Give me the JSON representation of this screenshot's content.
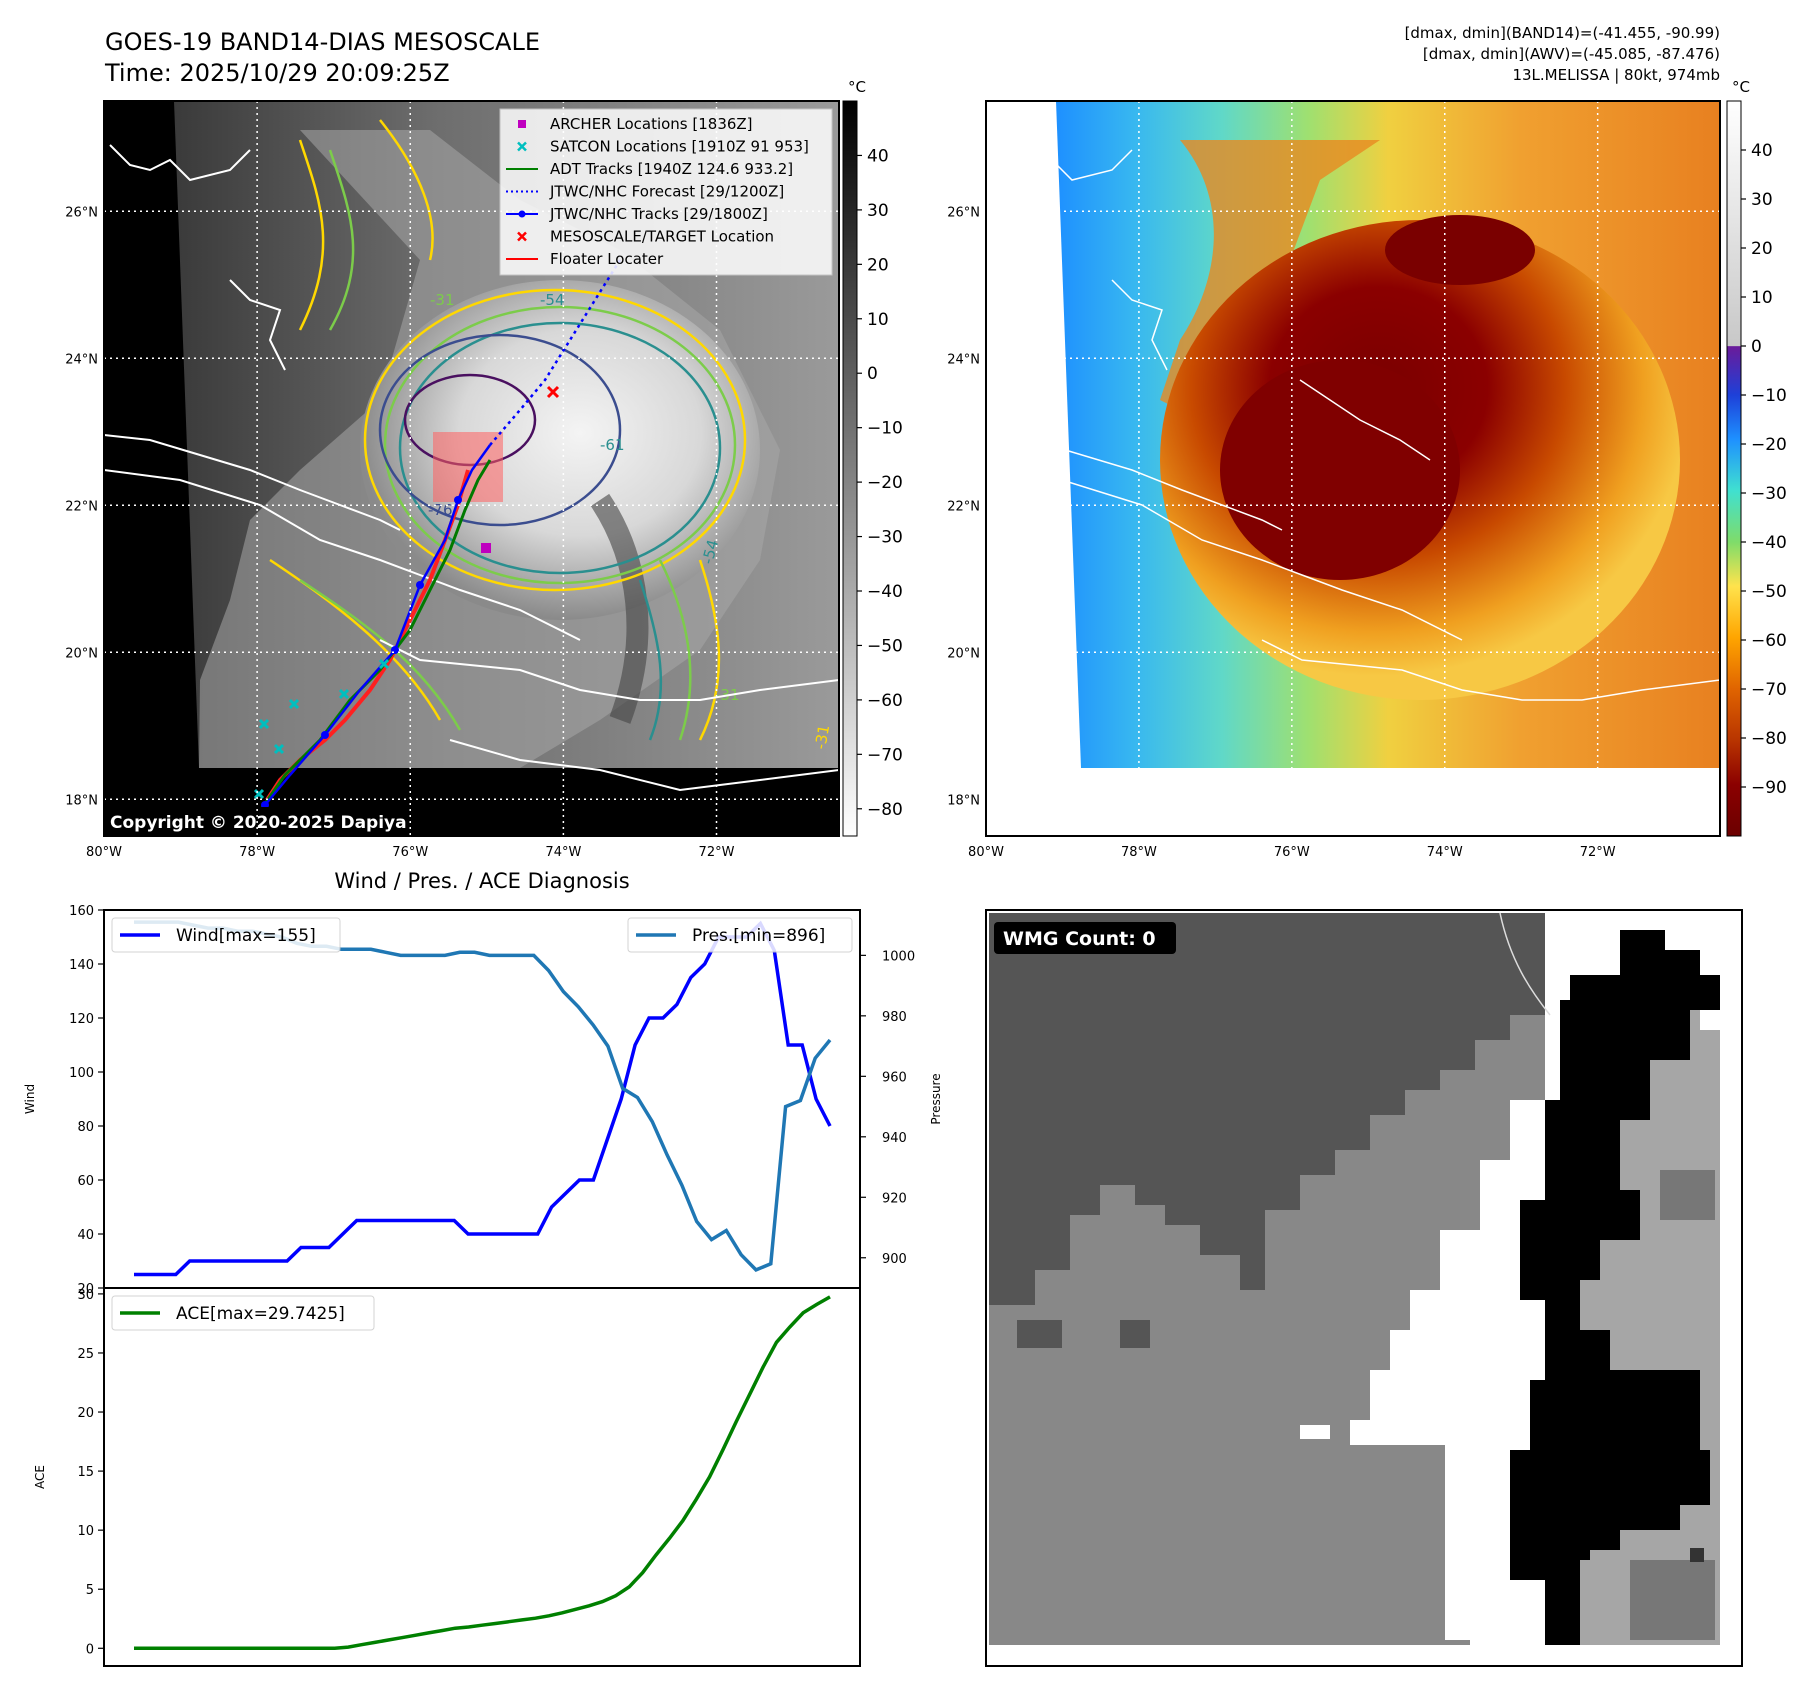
{
  "header": {
    "title_line1": "GOES-19 BAND14-DIAS MESOSCALE",
    "title_line2": "Time: 2025/10/29 20:09:25Z",
    "info_line1": "[dmax, dmin](BAND14)=(-41.455, -90.99)",
    "info_line2": "[dmax, dmin](AWV)=(-45.085, -87.476)",
    "info_line3": "13L.MELISSA | 80kt, 974mb"
  },
  "maps": {
    "lat_labels": [
      "26°N",
      "24°N",
      "22°N",
      "20°N",
      "18°N"
    ],
    "lat_values": [
      26,
      24,
      22,
      20,
      18
    ],
    "lon_labels": [
      "80°W",
      "78°W",
      "76°W",
      "74°W",
      "72°W"
    ],
    "lon_values": [
      -80,
      -78,
      -76,
      -74,
      -72
    ],
    "extent": {
      "lon_min": -80,
      "lon_max": -70.4,
      "lat_min": 17.5,
      "lat_max": 27.5
    },
    "copyright": "Copyright © 2020-2025 Dapiya",
    "contour_labels": [
      "-54",
      "-31",
      "-76",
      "-61",
      "-54",
      "-31",
      "-31"
    ],
    "legend": [
      {
        "label": "ARCHER Locations [1836Z]",
        "color": "#bf00bf",
        "marker": "square"
      },
      {
        "label": "SATCON Locations [1910Z 91 953]",
        "color": "#00bfbf",
        "marker": "x"
      },
      {
        "label": "ADT Tracks [1940Z 124.6 933.2]",
        "color": "#008000",
        "marker": "line"
      },
      {
        "label": "JTWC/NHC Forecast [29/1200Z]",
        "color": "#0000ff",
        "marker": "dotted"
      },
      {
        "label": "JTWC/NHC Tracks [29/1800Z]",
        "color": "#0000ff",
        "marker": "line-dot"
      },
      {
        "label": "MESOSCALE/TARGET Location",
        "color": "#ff0000",
        "marker": "x"
      },
      {
        "label": "Floater Locater",
        "color": "#ff0000",
        "marker": "line"
      }
    ],
    "colorbar_unit": "°C",
    "gray_colorbar_ticks": [
      "40",
      "30",
      "20",
      "10",
      "0",
      "−10",
      "−20",
      "−30",
      "−40",
      "−50",
      "−60",
      "−70",
      "−80"
    ],
    "gray_colorbar_values": [
      40,
      30,
      20,
      10,
      0,
      -10,
      -20,
      -30,
      -40,
      -50,
      -60,
      -70,
      -80
    ],
    "gray_colorbar_range": [
      -85,
      50
    ],
    "color_colorbar_ticks": [
      "40",
      "30",
      "20",
      "10",
      "0",
      "−10",
      "−20",
      "−30",
      "−40",
      "−50",
      "−60",
      "−70",
      "−80",
      "−90"
    ],
    "color_colorbar_values": [
      40,
      30,
      20,
      10,
      0,
      -10,
      -20,
      -30,
      -40,
      -50,
      -60,
      -70,
      -80,
      -90
    ],
    "color_colorbar_range": [
      -100,
      50
    ]
  },
  "wmg": {
    "label": "WMG Count: 0"
  },
  "chart_data": [
    {
      "type": "line",
      "title": "Wind / Pres. / ACE Diagnosis",
      "ylabel": "Wind",
      "ylabel_right": "Pressure",
      "ylim": [
        20,
        160
      ],
      "ylim_right": [
        890,
        1015
      ],
      "y_ticks": [
        20,
        40,
        60,
        80,
        100,
        120,
        140,
        160
      ],
      "y_ticks_right": [
        900,
        920,
        940,
        960,
        980,
        1000
      ],
      "series": [
        {
          "name": "Wind[max=155]",
          "color": "#0000ff",
          "values": [
            25,
            25,
            25,
            25,
            30,
            30,
            30,
            30,
            30,
            30,
            30,
            30,
            35,
            35,
            35,
            40,
            45,
            45,
            45,
            45,
            45,
            45,
            45,
            45,
            40,
            40,
            40,
            40,
            40,
            40,
            50,
            55,
            60,
            60,
            75,
            90,
            110,
            120,
            120,
            125,
            135,
            140,
            150,
            150,
            150,
            155,
            145,
            110,
            110,
            90,
            80
          ]
        },
        {
          "name": "Pres.[min=896]",
          "color": "#1f77b4",
          "values": [
            1011,
            1011,
            1011,
            1011,
            1010,
            1009,
            1009,
            1008,
            1008,
            1007,
            1006,
            1004,
            1003,
            1003,
            1002,
            1002,
            1002,
            1001,
            1000,
            1000,
            1000,
            1000,
            1001,
            1001,
            1000,
            1000,
            1000,
            1000,
            995,
            988,
            983,
            977,
            970,
            956,
            953,
            945,
            934,
            924,
            912,
            906,
            909,
            901,
            896,
            898,
            950,
            952,
            966,
            972
          ]
        }
      ]
    },
    {
      "type": "line",
      "ylabel": "ACE",
      "ylim": [
        -1.5,
        30.5
      ],
      "y_ticks": [
        0,
        5,
        10,
        15,
        20,
        25,
        30
      ],
      "series": [
        {
          "name": "ACE[max=29.7425]",
          "color": "#008000",
          "values": [
            0,
            0,
            0,
            0,
            0,
            0,
            0,
            0,
            0,
            0,
            0,
            0,
            0,
            0,
            0,
            0,
            0.1,
            0.3,
            0.5,
            0.7,
            0.9,
            1.1,
            1.3,
            1.5,
            1.7,
            1.8,
            1.95,
            2.1,
            2.25,
            2.4,
            2.55,
            2.75,
            3.0,
            3.3,
            3.6,
            3.95,
            4.45,
            5.2,
            6.4,
            7.9,
            9.3,
            10.8,
            12.6,
            14.5,
            16.8,
            19.2,
            21.5,
            23.8,
            25.9,
            27.2,
            28.4,
            29.1,
            29.7425
          ]
        }
      ]
    }
  ]
}
